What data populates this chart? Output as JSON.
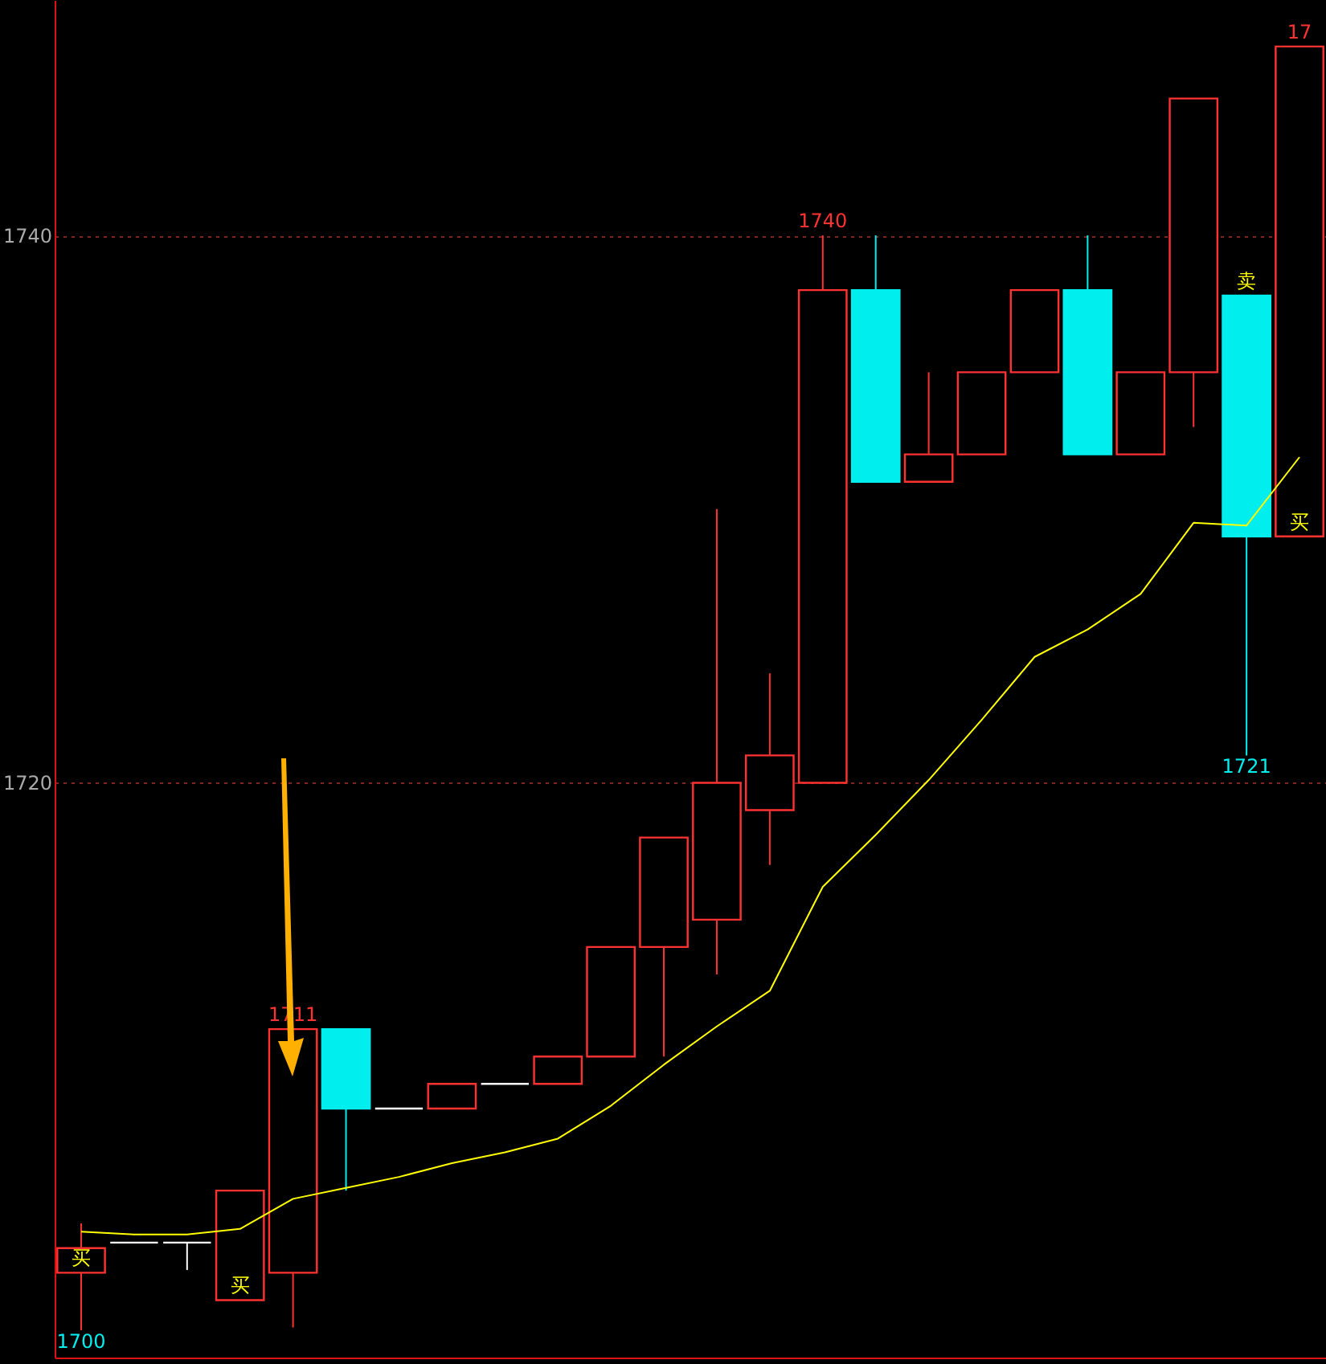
{
  "chart_data": {
    "type": "candlestick",
    "categories": [
      null,
      null,
      null,
      null,
      null,
      null,
      null,
      null,
      null,
      null,
      null,
      null,
      null,
      null,
      null,
      null,
      null,
      null,
      null,
      null,
      null,
      null,
      null,
      null
    ],
    "series": [
      {
        "type": "candlestick",
        "ohlc": [
          [
            1702.1,
            1703.9,
            1700.0,
            1703.0
          ],
          [
            1703.2,
            1703.2,
            1703.2,
            1703.2
          ],
          [
            1703.2,
            1703.2,
            1702.2,
            1703.2
          ],
          [
            1701.1,
            1705.1,
            1701.1,
            1705.1
          ],
          [
            1702.1,
            1711.0,
            1700.1,
            1711.0
          ],
          [
            1711.0,
            1711.0,
            1705.1,
            1708.1
          ],
          [
            1708.1,
            1708.1,
            1708.1,
            1708.1
          ],
          [
            1708.1,
            1709.0,
            1708.1,
            1709.0
          ],
          [
            1709.0,
            1709.0,
            1709.0,
            1709.0
          ],
          [
            1709.0,
            1710.0,
            1709.0,
            1710.0
          ],
          [
            1710.0,
            1714.0,
            1710.0,
            1714.0
          ],
          [
            1714.0,
            1718.0,
            1710.0,
            1718.0
          ],
          [
            1715.0,
            1730.0,
            1713.0,
            1720.0
          ],
          [
            1719.0,
            1724.0,
            1717.0,
            1721.0
          ],
          [
            1720.0,
            1740.0,
            1720.0,
            1738.0
          ],
          [
            1738.0,
            1740.0,
            1731.0,
            1731.0
          ],
          [
            1731.0,
            1735.0,
            1731.0,
            1732.0
          ],
          [
            1732.0,
            1735.0,
            1732.0,
            1735.0
          ],
          [
            1735.0,
            1738.0,
            1735.0,
            1738.0
          ],
          [
            1738.0,
            1740.0,
            1732.0,
            1732.0
          ],
          [
            1732.0,
            1735.0,
            1732.0,
            1735.0
          ],
          [
            1735.0,
            1745.0,
            1733.0,
            1745.0
          ],
          [
            1737.8,
            1737.8,
            1721.0,
            1729.0
          ],
          [
            1729.0,
            1746.9,
            1729.0,
            1746.9
          ]
        ],
        "colors": [
          "#ff3232",
          "#ffffff",
          "#ffffff",
          "#ff3232",
          "#ff3232",
          "#00eeee",
          "#ffffff",
          "#ff3232",
          "#ffffff",
          "#ff3232",
          "#ff3232",
          "#ff3232",
          "#ff3232",
          "#ff3232",
          "#ff3232",
          "#00eeee",
          "#ff3232",
          "#ff3232",
          "#ff3232",
          "#00eeee",
          "#ff3232",
          "#ff3232",
          "#00eeee",
          "#ff3232"
        ]
      },
      {
        "type": "line",
        "color": "#ffff00",
        "values": [
          1703.6,
          1703.5,
          1703.5,
          1703.7,
          1704.8,
          1705.2,
          1705.6,
          1706.1,
          1706.5,
          1707.0,
          1708.2,
          1709.7,
          1711.1,
          1712.4,
          1716.2,
          1718.1,
          1720.1,
          1722.3,
          1724.6,
          1725.6,
          1726.9,
          1729.5,
          1729.4,
          1731.9
        ]
      }
    ],
    "ylim": [
      1699,
      1748.6
    ],
    "yticks": [
      1720,
      1740
    ],
    "grid": "y",
    "tick_labels": "y",
    "annotations": [
      {
        "text": "1711",
        "y": 1711.0
      },
      {
        "text": "1740",
        "y": 1740.0
      },
      {
        "text": "1721",
        "y": 1721.0
      },
      {
        "text": "1700",
        "y": 1700.0
      },
      {
        "text": "17",
        "y": 1746.9
      },
      {
        "text": "买",
        "y": 1702.1
      },
      {
        "text": "买",
        "y": 1701.1
      },
      {
        "text": "卖",
        "y": 1737.8
      },
      {
        "text": "买",
        "y": 1729.0
      }
    ]
  }
}
